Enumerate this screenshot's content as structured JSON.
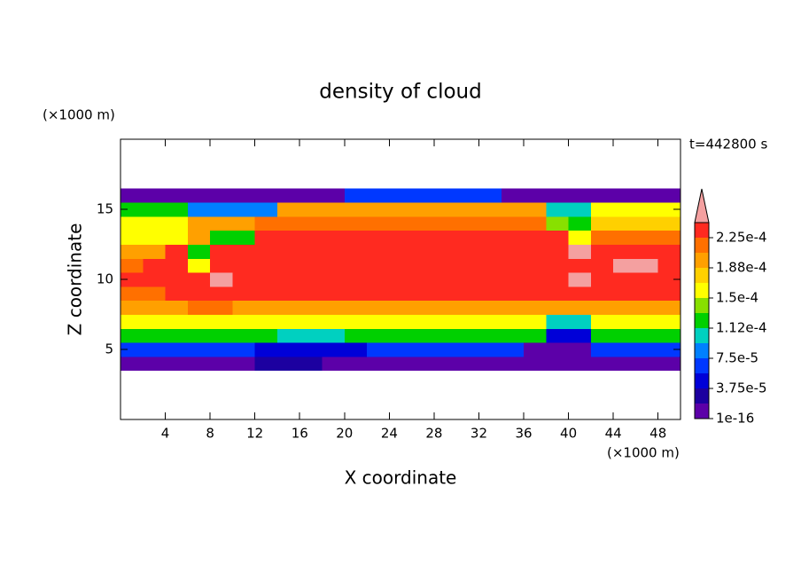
{
  "chart_data": {
    "type": "contour",
    "title": "density of cloud",
    "x_label": "X coordinate",
    "y_label": "Z coordinate",
    "x_unit": "(×1000 m)",
    "y_unit": "(×1000 m)",
    "annotation": "t=442800 s",
    "xlim": [
      0,
      50
    ],
    "ylim": [
      0,
      20
    ],
    "xticks": [
      4,
      8,
      12,
      16,
      20,
      24,
      28,
      32,
      36,
      40,
      44,
      48
    ],
    "yticks": [
      5,
      10,
      15
    ],
    "x": [
      1,
      3,
      5,
      7,
      9,
      11,
      13,
      15,
      17,
      19,
      21,
      23,
      25,
      27,
      29,
      31,
      33,
      35,
      37,
      39,
      41,
      43,
      45,
      47,
      49
    ],
    "y": [
      4,
      5,
      6,
      7,
      8,
      9,
      10,
      11,
      12,
      13,
      14,
      15,
      16
    ],
    "z": [
      [
        1e-05,
        1e-05,
        1e-05,
        1e-05,
        1e-05,
        1e-05,
        3e-05,
        3e-05,
        3e-05,
        1e-05,
        1e-05,
        1e-05,
        1e-05,
        1e-05,
        1e-05,
        1e-05,
        1e-05,
        1e-05,
        1e-05,
        1e-05,
        1e-05,
        1e-05,
        1e-05,
        1e-05,
        1e-05
      ],
      [
        7e-05,
        7e-05,
        7e-05,
        7e-05,
        7e-05,
        7e-05,
        5e-05,
        5e-05,
        5e-05,
        5e-05,
        5e-05,
        7e-05,
        7e-05,
        7e-05,
        7e-05,
        7e-05,
        7e-05,
        7e-05,
        1e-05,
        1e-05,
        1e-05,
        7e-05,
        7e-05,
        7e-05,
        7e-05
      ],
      [
        0.00013,
        0.00013,
        0.00013,
        0.00013,
        0.00013,
        0.00013,
        0.00013,
        0.0001,
        0.0001,
        0.0001,
        0.00013,
        0.00013,
        0.00013,
        0.00013,
        0.00013,
        0.00013,
        0.00013,
        0.00013,
        0.00013,
        4e-05,
        4e-05,
        0.00013,
        0.00013,
        0.00013,
        0.00013
      ],
      [
        0.00016,
        0.00016,
        0.00016,
        0.00016,
        0.00016,
        0.00016,
        0.00016,
        0.00016,
        0.00016,
        0.00016,
        0.00016,
        0.00016,
        0.00016,
        0.00016,
        0.00016,
        0.00016,
        0.00016,
        0.00016,
        0.00016,
        0.0001,
        0.0001,
        0.00016,
        0.00016,
        0.00016,
        0.00016
      ],
      [
        0.000195,
        0.000195,
        0.000195,
        0.00021,
        0.00021,
        0.000195,
        0.000195,
        0.000195,
        0.000195,
        0.000195,
        0.000195,
        0.000195,
        0.000195,
        0.000195,
        0.000195,
        0.000195,
        0.000195,
        0.000195,
        0.000195,
        0.000195,
        0.000195,
        0.000195,
        0.000195,
        0.000195,
        0.000195
      ],
      [
        0.00021,
        0.00021,
        0.00023,
        0.00023,
        0.00023,
        0.00023,
        0.00023,
        0.00023,
        0.00023,
        0.00023,
        0.00023,
        0.00023,
        0.00023,
        0.00023,
        0.00023,
        0.00023,
        0.00023,
        0.00023,
        0.00023,
        0.00023,
        0.00023,
        0.00023,
        0.00023,
        0.00023,
        0.00023
      ],
      [
        0.00023,
        0.00023,
        0.00023,
        0.00023,
        0.00025,
        0.00023,
        0.00023,
        0.00023,
        0.00023,
        0.00023,
        0.00023,
        0.00023,
        0.00023,
        0.00023,
        0.00023,
        0.00023,
        0.00023,
        0.00023,
        0.00023,
        0.00023,
        0.00025,
        0.00023,
        0.00023,
        0.00023,
        0.00023
      ],
      [
        0.00021,
        0.00023,
        0.00023,
        0.00015,
        0.00023,
        0.00023,
        0.00023,
        0.00023,
        0.00023,
        0.00023,
        0.00023,
        0.00023,
        0.00023,
        0.00023,
        0.00023,
        0.00023,
        0.00023,
        0.00023,
        0.00023,
        0.00023,
        0.00023,
        0.00023,
        0.00025,
        0.00025,
        0.00023
      ],
      [
        0.0002,
        0.0002,
        0.00023,
        0.00013,
        0.00023,
        0.00023,
        0.00023,
        0.00023,
        0.00023,
        0.00023,
        0.00023,
        0.00023,
        0.00023,
        0.00023,
        0.00023,
        0.00023,
        0.00023,
        0.00023,
        0.00023,
        0.00023,
        0.00025,
        0.00023,
        0.00023,
        0.00023,
        0.00023
      ],
      [
        0.000165,
        0.000165,
        0.000165,
        0.00019,
        0.00013,
        0.00013,
        0.000225,
        0.000225,
        0.000225,
        0.000225,
        0.000225,
        0.000225,
        0.000225,
        0.000225,
        0.000225,
        0.000225,
        0.000225,
        0.000225,
        0.000225,
        0.000225,
        0.00015,
        0.00021,
        0.00021,
        0.00021,
        0.00021
      ],
      [
        0.00015,
        0.00015,
        0.00015,
        0.0002,
        0.0002,
        0.0002,
        0.00022,
        0.00022,
        0.00022,
        0.00022,
        0.00022,
        0.00022,
        0.00022,
        0.00022,
        0.00022,
        0.00022,
        0.00022,
        0.00022,
        0.00022,
        0.00014,
        0.00012,
        0.00017,
        0.00017,
        0.00017,
        0.00017
      ],
      [
        0.00012,
        0.00012,
        0.00012,
        8e-05,
        8e-05,
        8e-05,
        8e-05,
        0.000205,
        0.000205,
        0.000205,
        0.000205,
        0.000205,
        0.000205,
        0.000205,
        0.000205,
        0.000205,
        0.000205,
        0.000205,
        0.000205,
        0.0001,
        0.0001,
        0.00015,
        0.00015,
        0.00015,
        0.00015
      ],
      [
        1e-05,
        1e-05,
        1e-05,
        1e-05,
        1e-05,
        1e-05,
        1e-05,
        1e-05,
        1e-05,
        1e-05,
        6e-05,
        6e-05,
        6e-05,
        6e-05,
        6e-05,
        6e-05,
        6e-05,
        1e-05,
        1e-05,
        1e-05,
        1e-05,
        1e-05,
        1e-05,
        1e-05,
        1e-05
      ]
    ],
    "colorbar": {
      "levels": [
        1e-16,
        1.875e-05,
        3.75e-05,
        5.625e-05,
        7.5e-05,
        9.375e-05,
        0.0001125,
        0.00013125,
        0.00015,
        0.00016875,
        0.0001875,
        0.00020625,
        0.000225,
        0.00024375
      ],
      "colors": [
        "#5c00a8",
        "#1c00a0",
        "#0000d8",
        "#0038ff",
        "#0080ff",
        "#00d0c0",
        "#00d000",
        "#88e000",
        "#ffff00",
        "#ffd000",
        "#ffa000",
        "#ff7000",
        "#ff2a20"
      ],
      "over_color": "#f4a0a0",
      "ticks": [
        1e-16,
        {
          "value": 3.75e-05,
          "label": "3.75e-5"
        },
        {
          "value": 7.5e-05,
          "label": "7.5e-5"
        },
        {
          "value": 0.0001125,
          "label": "1.12e-4"
        },
        {
          "value": 0.00015,
          "label": "1.5e-4"
        },
        {
          "value": 0.0001875,
          "label": "1.88e-4"
        },
        {
          "value": 0.000225,
          "label": "2.25e-4"
        }
      ]
    }
  }
}
